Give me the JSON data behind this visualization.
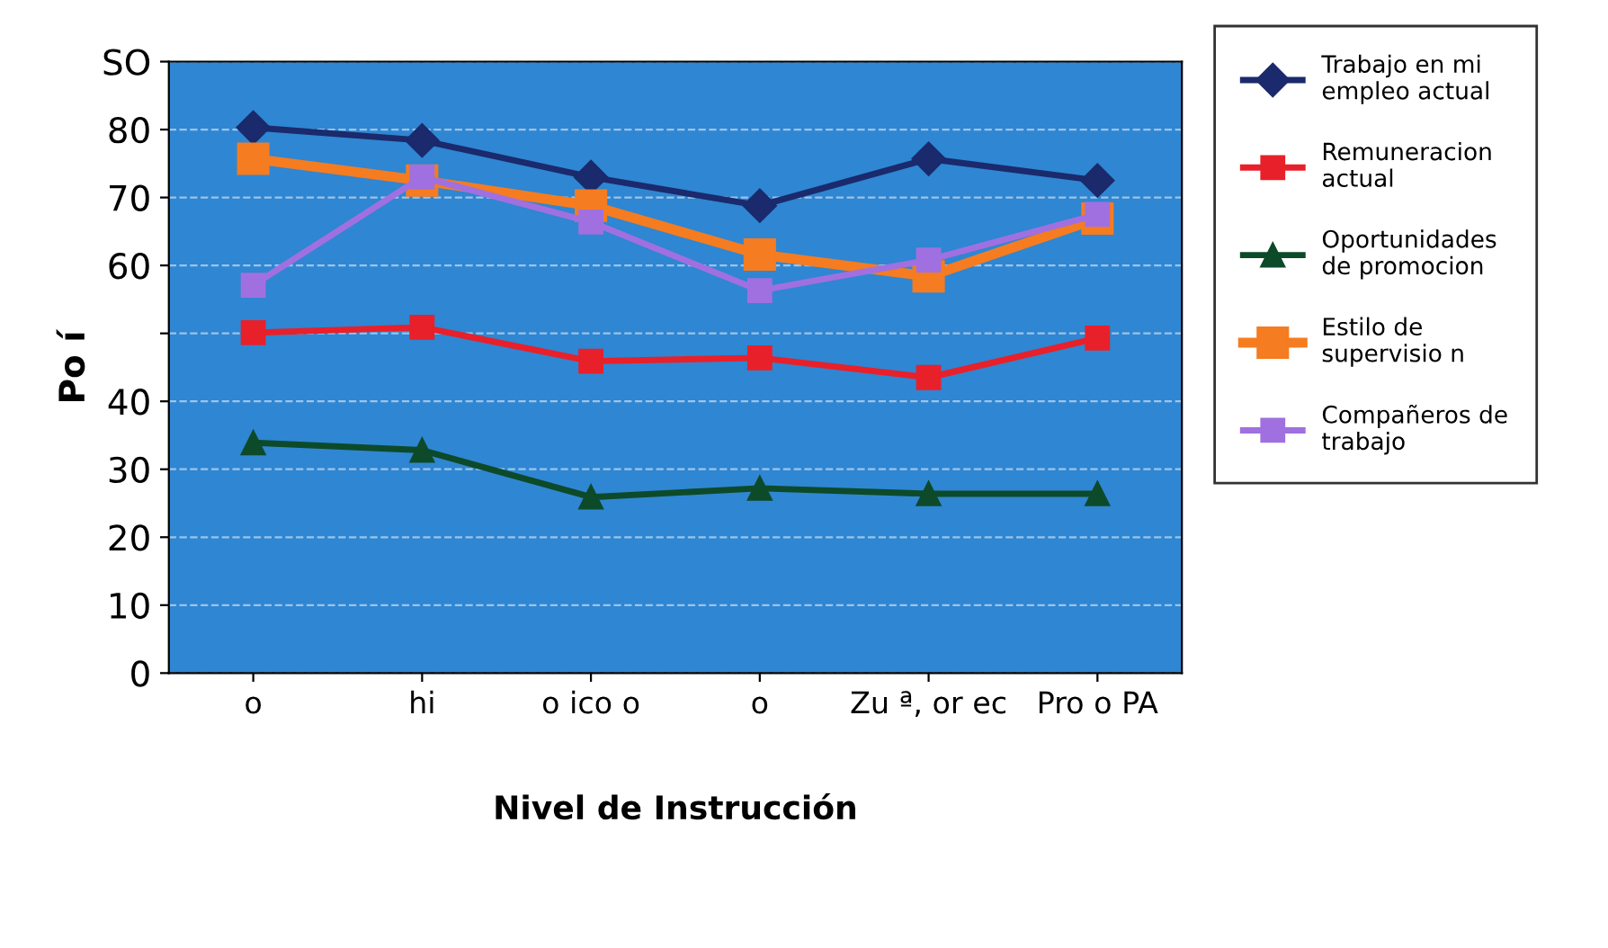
{
  "chart_data": {
    "type": "line",
    "xlabel": "Nivel de Instrucción",
    "ylabel": "Po í",
    "categories": [
      "o",
      "hi",
      "o ico o",
      "o",
      "Zu ª, or ec",
      "Pro o PA"
    ],
    "series": [
      {
        "name": "Trabajo en mi\nempleo actual",
        "color": "#1a2a6c",
        "marker": "diamond",
        "values": [
          80.3,
          78.4,
          73,
          68.8,
          75.7,
          72.5
        ]
      },
      {
        "name": "Remuneracion\nactual",
        "color": "#e8202a",
        "marker": "square",
        "values": [
          50.1,
          50.9,
          45.9,
          46.4,
          43.5,
          49.3
        ]
      },
      {
        "name": "Oportunidades\nde promocion",
        "color": "#0d4a2a",
        "marker": "triangle",
        "values": [
          33.9,
          32.8,
          25.9,
          27.2,
          26.4,
          26.4
        ]
      },
      {
        "name": "Estilo de\nsupervisio n",
        "color": "#f57c20",
        "marker": "square",
        "values": [
          75.7,
          72.5,
          68.8,
          61.6,
          58.4,
          66.9
        ]
      },
      {
        "name": "Compañeros de\ntrabajo",
        "color": "#a070e0",
        "marker": "square",
        "values": [
          57.1,
          73,
          66.4,
          56.3,
          60.8,
          67.5
        ]
      }
    ],
    "ylim": [
      0,
      90
    ],
    "yticks": [
      0,
      10,
      20,
      30,
      40,
      {
        "value": 50,
        "label": null
      },
      60,
      70,
      80,
      {
        "value": 90,
        "label": "SO"
      }
    ],
    "grid": "y",
    "legend": "right",
    "line_style": "solid"
  }
}
